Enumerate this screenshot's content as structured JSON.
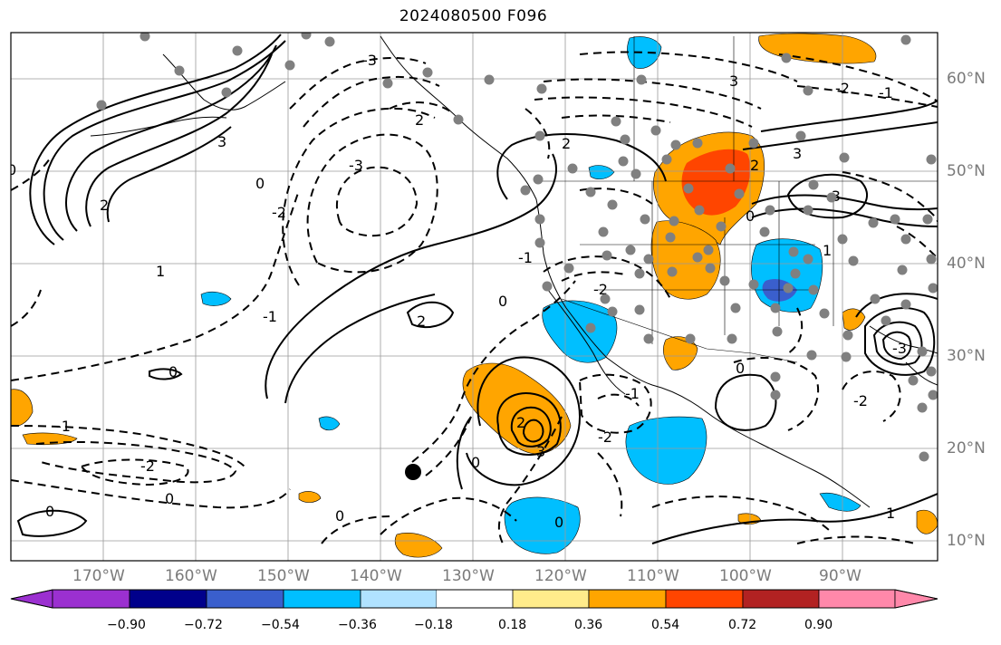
{
  "title": "2024080500 F096",
  "lat_ticks": [
    "60°N",
    "50°N",
    "40°N",
    "30°N",
    "20°N",
    "10°N"
  ],
  "lon_ticks": [
    "170°W",
    "160°W",
    "150°W",
    "140°W",
    "130°W",
    "120°W",
    "110°W",
    "100°W",
    "90°W"
  ],
  "colorbar": {
    "labels": [
      "−0.90",
      "−0.72",
      "−0.54",
      "−0.36",
      "−0.18",
      "0.18",
      "0.36",
      "0.54",
      "0.72",
      "0.90"
    ],
    "colors": [
      "#9b30d0",
      "#00008b",
      "#3a5fcd",
      "#00bfff",
      "#b0e2ff",
      "#ffffff",
      "#ffec8b",
      "#ffa500",
      "#ff4500",
      "#b22222",
      "#ff88aa"
    ]
  },
  "contour_labels": [
    "0",
    "2",
    "3",
    "-1",
    "1",
    "-2",
    "-3",
    "0",
    "2",
    "-3",
    "2",
    "3",
    "-2",
    "-3",
    "2",
    "-1",
    "0",
    "0",
    "-2",
    "0",
    "2",
    "3",
    "-1",
    "-2",
    "0",
    "0",
    "-1",
    "-2",
    "0",
    "0",
    "-3",
    "-2",
    "3",
    "0",
    "1",
    "2",
    "0",
    "-1",
    "1"
  ]
}
